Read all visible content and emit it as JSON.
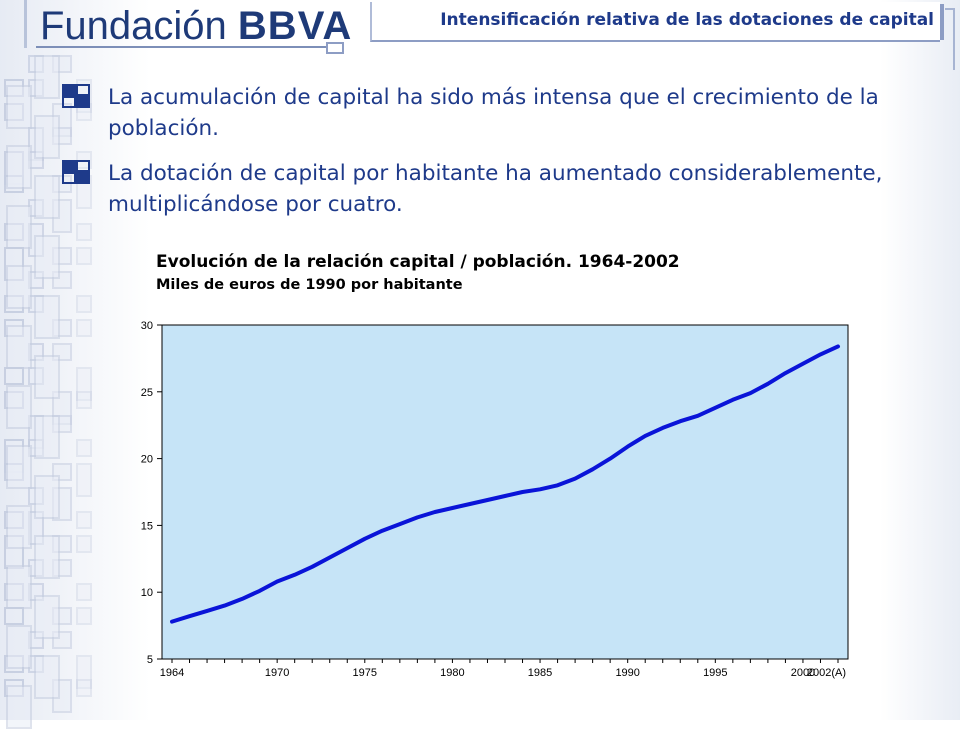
{
  "logo": {
    "text_light": "Fundación ",
    "text_bold": "BBVA"
  },
  "header": {
    "title": "Intensificación relativa de las dotaciones de capital"
  },
  "bullets": [
    {
      "text": "La acumulación de capital ha sido más intensa que el crecimiento de la población."
    },
    {
      "text": "La dotación de capital por habitante ha aumentado considerablemente, multiplicándose por cuatro."
    }
  ],
  "colors": {
    "accent": "#1e3a8a",
    "plot_bg": "#c6e4f7",
    "line": "#0a14d8"
  },
  "chart_data": {
    "type": "line",
    "title": "Evolución de la relación capital / población. 1964-2002",
    "subtitle": "Miles de euros de 1990 por habitante",
    "xlabel": "",
    "ylabel": "",
    "ylim": [
      5,
      30
    ],
    "yticks": [
      5,
      10,
      15,
      20,
      25,
      30
    ],
    "xtick_labels": [
      "1964",
      "1970",
      "1975",
      "1980",
      "1985",
      "1990",
      "1995",
      "2000",
      "2002(A)"
    ],
    "grid": false,
    "legend": "none",
    "series": [
      {
        "x": [
          1964,
          1965,
          1966,
          1967,
          1968,
          1969,
          1970,
          1971,
          1972,
          1973,
          1974,
          1975,
          1976,
          1977,
          1978,
          1979,
          1980,
          1981,
          1982,
          1983,
          1984,
          1985,
          1986,
          1987,
          1988,
          1989,
          1990,
          1991,
          1992,
          1993,
          1994,
          1995,
          1996,
          1997,
          1998,
          1999,
          2000,
          2001,
          2002
        ],
        "values": [
          7.8,
          8.2,
          8.6,
          9.0,
          9.5,
          10.1,
          10.8,
          11.3,
          11.9,
          12.6,
          13.3,
          14.0,
          14.6,
          15.1,
          15.6,
          16.0,
          16.3,
          16.6,
          16.9,
          17.2,
          17.5,
          17.7,
          18.0,
          18.5,
          19.2,
          20.0,
          20.9,
          21.7,
          22.3,
          22.8,
          23.2,
          23.8,
          24.4,
          24.9,
          25.6,
          26.4,
          27.1,
          27.8,
          28.4
        ]
      }
    ]
  }
}
